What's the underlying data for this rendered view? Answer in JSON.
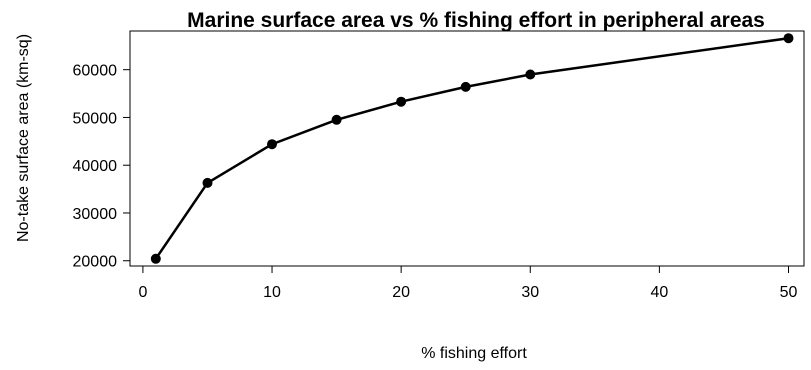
{
  "chart_data": {
    "type": "line",
    "title": "Marine surface area vs % fishing effort in peripheral areas",
    "xlabel": "% fishing effort",
    "ylabel": "No-take surface area (km-sq)",
    "x": [
      1,
      5,
      10,
      15,
      20,
      25,
      30,
      50
    ],
    "series": [
      {
        "values": [
          20400,
          36300,
          44400,
          49500,
          53300,
          56400,
          59000,
          66600
        ]
      }
    ],
    "xticks": [
      0,
      10,
      20,
      30,
      40,
      50
    ],
    "yticks": [
      20000,
      30000,
      40000,
      50000,
      60000
    ],
    "xlim": [
      -1,
      51.2
    ],
    "ylim": [
      18900,
      68100
    ],
    "grid": false,
    "markers": "filled-circle",
    "line_color": "#000000"
  }
}
